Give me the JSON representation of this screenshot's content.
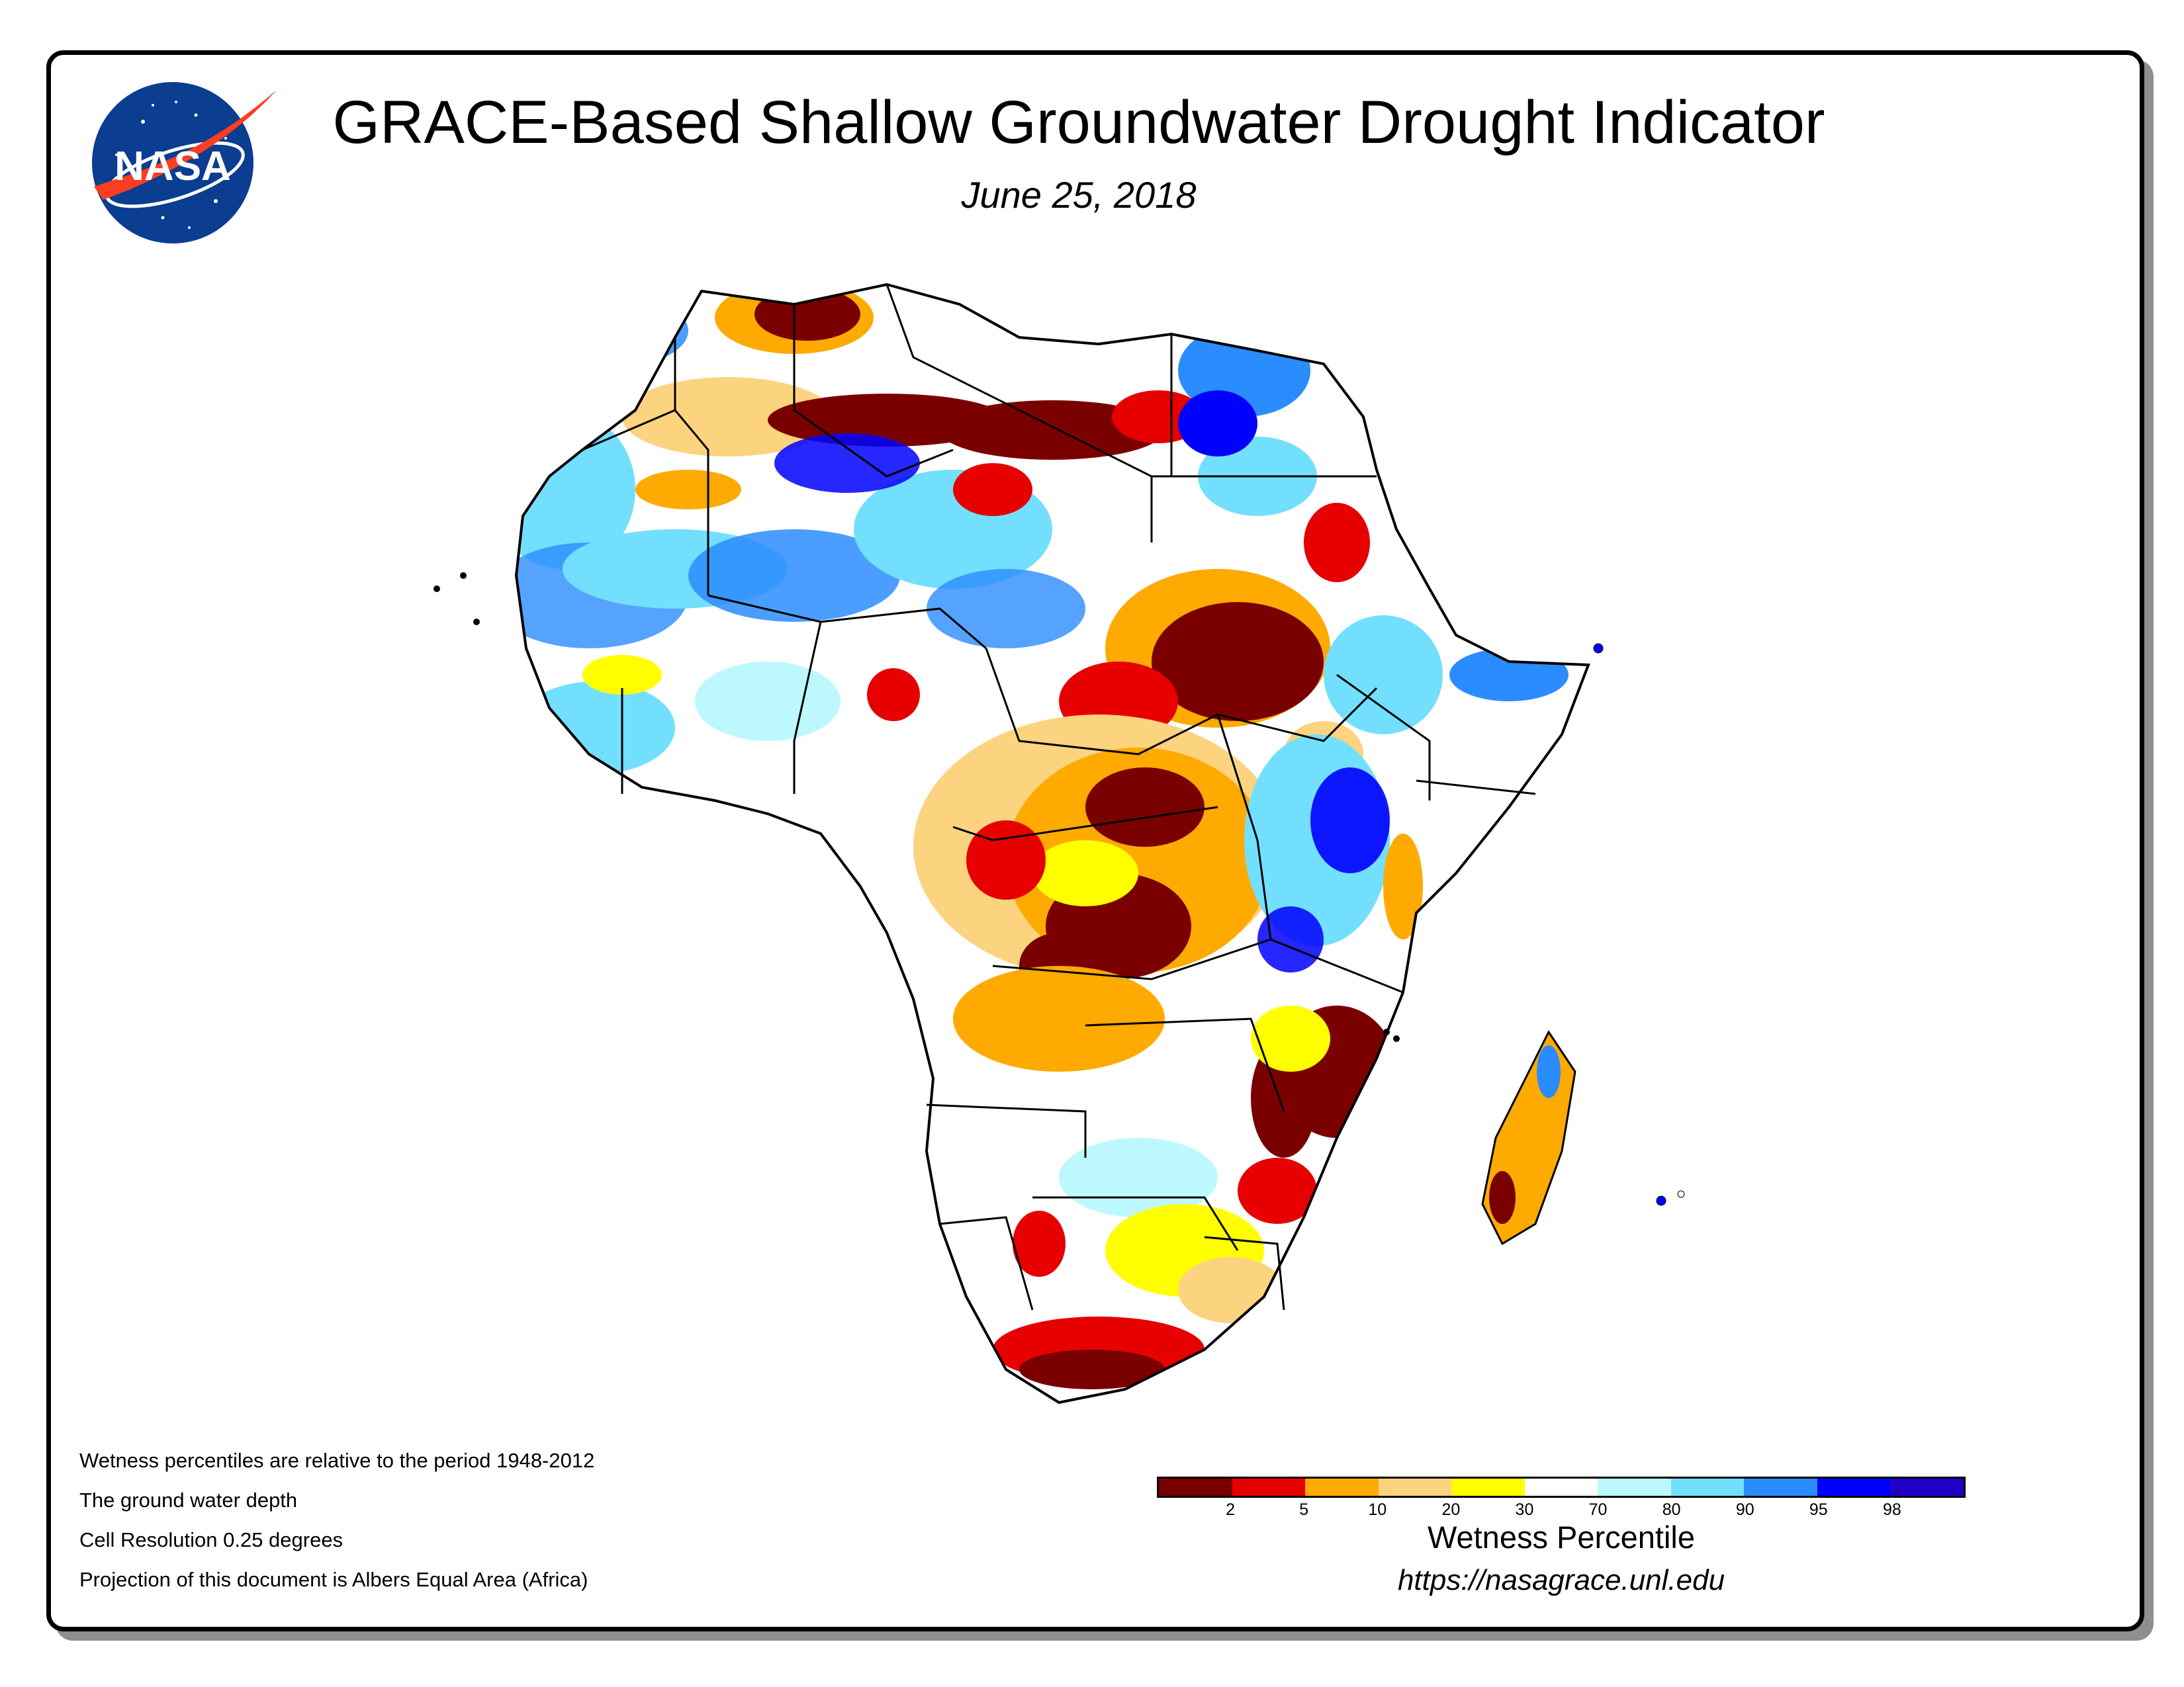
{
  "title": "GRACE-Based Shallow Groundwater Drought Indicator",
  "date": "June 25, 2018",
  "logo_text": "NASA",
  "notes": [
    "Wetness percentiles are relative to the period 1948-2012",
    "The ground water depth",
    "Cell Resolution 0.25 degrees",
    "Projection of this document is Albers Equal Area (Africa)"
  ],
  "legend": {
    "title": "Wetness Percentile",
    "colors": [
      "#7a0000",
      "#e60000",
      "#ffaa00",
      "#fcd37f",
      "#ffff00",
      "#ffffff",
      "#bef8ff",
      "#73dfff",
      "#2b8cff",
      "#0000ff",
      "#2000c8"
    ],
    "ticks": [
      "2",
      "5",
      "10",
      "20",
      "30",
      "70",
      "80",
      "90",
      "95",
      "98"
    ]
  },
  "source_url": "https://nasagrace.unl.edu",
  "map_palette": {
    "land": "#ffffff",
    "border": "#000000",
    "very_dry": "#7a0000",
    "dry": "#e60000",
    "orange": "#ffaa00",
    "tan": "#fcd37f",
    "yellow": "#ffff00",
    "light_cyan": "#bef8ff",
    "light_blue": "#73dfff",
    "blue": "#2b8cff",
    "deep_blue": "#0000ff",
    "violet": "#2000c8"
  }
}
